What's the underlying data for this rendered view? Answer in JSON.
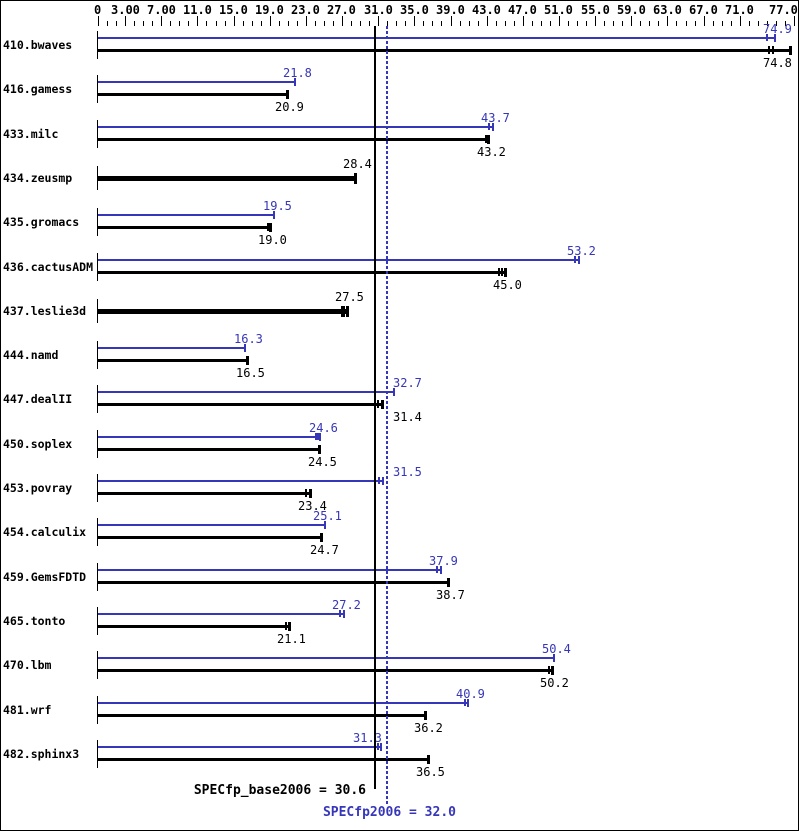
{
  "chart_data": {
    "type": "bar",
    "orientation": "horizontal",
    "title": "",
    "xlabel": "",
    "xlim": [
      0,
      77
    ],
    "grid": false,
    "colors": {
      "peak": "#3636b8",
      "base": "#000000",
      "background": "#ffffff"
    },
    "axis": {
      "minor_step": 1,
      "labeled_ticks": [
        {
          "v": 0,
          "label": "0"
        },
        {
          "v": 3,
          "label": "3.00"
        },
        {
          "v": 7,
          "label": "7.00"
        },
        {
          "v": 11,
          "label": "11.0"
        },
        {
          "v": 15,
          "label": "15.0"
        },
        {
          "v": 19,
          "label": "19.0"
        },
        {
          "v": 23,
          "label": "23.0"
        },
        {
          "v": 27,
          "label": "27.0"
        },
        {
          "v": 31,
          "label": "31.0"
        },
        {
          "v": 35,
          "label": "35.0"
        },
        {
          "v": 39,
          "label": "39.0"
        },
        {
          "v": 43,
          "label": "43.0"
        },
        {
          "v": 47,
          "label": "47.0"
        },
        {
          "v": 51,
          "label": "51.0"
        },
        {
          "v": 55,
          "label": "55.0"
        },
        {
          "v": 59,
          "label": "59.0"
        },
        {
          "v": 63,
          "label": "63.0"
        },
        {
          "v": 67,
          "label": "67.0"
        },
        {
          "v": 71,
          "label": "71.0"
        },
        {
          "v": 77,
          "label": "77.0"
        }
      ]
    },
    "categories": [
      "410.bwaves",
      "416.gamess",
      "433.milc",
      "434.zeusmp",
      "435.gromacs",
      "436.cactusADM",
      "437.leslie3d",
      "444.namd",
      "447.dealII",
      "450.soplex",
      "453.povray",
      "454.calculix",
      "459.GemsFDTD",
      "465.tonto",
      "470.lbm",
      "481.wrf",
      "482.sphinx3"
    ],
    "series": [
      {
        "name": "SPECfp2006 (peak)",
        "color": "#3636b8",
        "values": [
          74.9,
          21.8,
          43.7,
          null,
          19.5,
          53.2,
          null,
          16.3,
          32.7,
          24.6,
          31.5,
          25.1,
          37.9,
          27.2,
          50.4,
          40.9,
          31.3
        ]
      },
      {
        "name": "SPECfp_base2006 (base)",
        "color": "#000000",
        "values": [
          74.8,
          20.9,
          43.2,
          28.4,
          19.0,
          45.0,
          27.5,
          16.5,
          31.4,
          24.5,
          23.4,
          24.7,
          38.7,
          21.1,
          50.2,
          36.2,
          36.5
        ]
      }
    ],
    "benchmarks": [
      {
        "name": "410.bwaves",
        "peak": {
          "v": 74.9,
          "label": "74.9",
          "end": 74.9,
          "marks": [
            74.0
          ]
        },
        "base": {
          "v": 74.8,
          "label": "74.8",
          "end": 76.6,
          "marks": [
            74.2,
            74.7
          ]
        }
      },
      {
        "name": "416.gamess",
        "peak": {
          "v": 21.8,
          "label": "21.8",
          "marks": []
        },
        "base": {
          "v": 20.9,
          "label": "20.9",
          "marks": []
        }
      },
      {
        "name": "433.milc",
        "peak": {
          "v": 43.7,
          "label": "43.7",
          "marks": [
            43.3
          ]
        },
        "base": {
          "v": 43.2,
          "label": "43.2",
          "marks": [
            42.9
          ]
        }
      },
      {
        "name": "434.zeusmp",
        "base_only": true,
        "base": {
          "v": 28.4,
          "label": "28.4",
          "marks": []
        }
      },
      {
        "name": "435.gromacs",
        "peak": {
          "v": 19.5,
          "label": "19.5",
          "marks": []
        },
        "base": {
          "v": 19.0,
          "label": "19.0",
          "marks": [
            18.85
          ]
        }
      },
      {
        "name": "436.cactusADM",
        "peak": {
          "v": 53.2,
          "label": "53.2",
          "marks": [
            52.8
          ]
        },
        "base": {
          "v": 45.0,
          "label": "45.0",
          "marks": [
            44.4,
            44.7
          ]
        }
      },
      {
        "name": "437.leslie3d",
        "base_only": true,
        "base": {
          "v": 27.5,
          "label": "27.5",
          "marks": [
            27.0,
            27.25
          ]
        }
      },
      {
        "name": "444.namd",
        "peak": {
          "v": 16.3,
          "label": "16.3",
          "marks": []
        },
        "base": {
          "v": 16.5,
          "label": "16.5",
          "marks": []
        }
      },
      {
        "name": "447.dealII",
        "peak": {
          "v": 32.7,
          "label": "32.7",
          "marks": [],
          "label_side": "right"
        },
        "base": {
          "v": 31.4,
          "label": "31.4",
          "marks": [
            31.0
          ],
          "label_side": "right"
        }
      },
      {
        "name": "450.soplex",
        "peak": {
          "v": 24.6,
          "label": "24.6",
          "marks": [
            24.1,
            24.35
          ]
        },
        "base": {
          "v": 24.5,
          "label": "24.5",
          "marks": []
        }
      },
      {
        "name": "453.povray",
        "peak": {
          "v": 31.5,
          "label": "31.5",
          "marks": [
            31.1
          ],
          "label_side": "right"
        },
        "base": {
          "v": 23.4,
          "label": "23.4",
          "marks": [
            23.0
          ]
        }
      },
      {
        "name": "454.calculix",
        "peak": {
          "v": 25.1,
          "label": "25.1",
          "marks": []
        },
        "base": {
          "v": 24.7,
          "label": "24.7",
          "marks": []
        }
      },
      {
        "name": "459.GemsFDTD",
        "peak": {
          "v": 37.9,
          "label": "37.9",
          "marks": [
            37.5
          ]
        },
        "base": {
          "v": 38.7,
          "label": "38.7",
          "marks": []
        }
      },
      {
        "name": "465.tonto",
        "peak": {
          "v": 27.2,
          "label": "27.2",
          "marks": [
            26.8
          ]
        },
        "base": {
          "v": 21.1,
          "label": "21.1",
          "marks": [
            20.75
          ]
        }
      },
      {
        "name": "470.lbm",
        "peak": {
          "v": 50.4,
          "label": "50.4",
          "marks": []
        },
        "base": {
          "v": 50.2,
          "label": "50.2",
          "marks": [
            49.9
          ]
        }
      },
      {
        "name": "481.wrf",
        "peak": {
          "v": 40.9,
          "label": "40.9",
          "marks": [
            40.6
          ]
        },
        "base": {
          "v": 36.2,
          "label": "36.2",
          "marks": []
        }
      },
      {
        "name": "482.sphinx3",
        "peak": {
          "v": 31.3,
          "label": "31.3",
          "marks": [
            31.0
          ],
          "label_side": "left"
        },
        "base": {
          "v": 36.5,
          "label": "36.5",
          "marks": []
        }
      }
    ],
    "reference_lines": [
      {
        "label": "SPECfp_base2006 = 30.6",
        "value": 30.6,
        "style": "solid",
        "color": "#000000"
      },
      {
        "label": "SPECfp2006 = 32.0",
        "value": 32.0,
        "style": "dotted",
        "color": "#3636b8"
      }
    ],
    "legend_position": "none"
  }
}
